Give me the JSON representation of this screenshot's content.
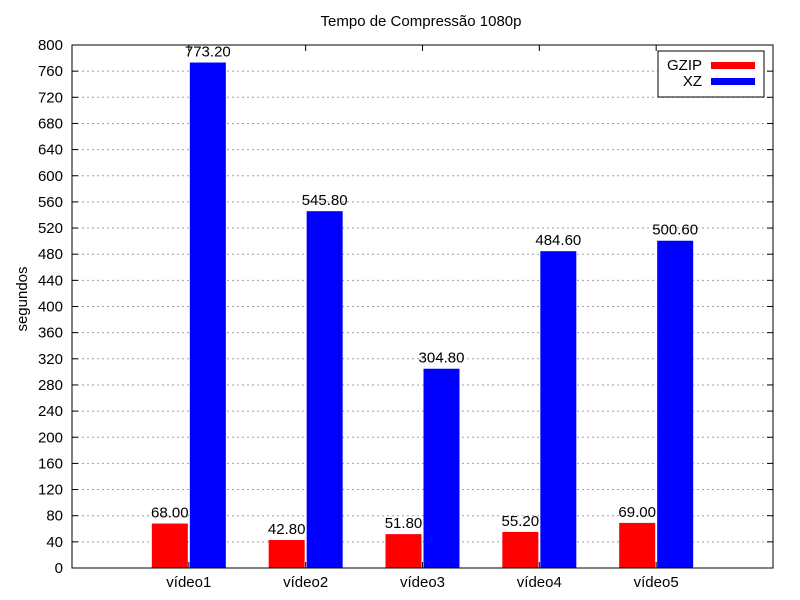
{
  "chart_data": {
    "type": "bar",
    "title": "Tempo de Compressão 1080p",
    "xlabel": "",
    "ylabel": "segundos",
    "categories": [
      "vídeo1",
      "vídeo2",
      "vídeo3",
      "vídeo4",
      "vídeo5"
    ],
    "series": [
      {
        "name": "GZIP",
        "color": "#ff0000",
        "values": [
          68.0,
          42.8,
          51.8,
          55.2,
          69.0
        ],
        "labels": [
          "68.00",
          "42.80",
          "51.80",
          "55.20",
          "69.00"
        ]
      },
      {
        "name": "XZ",
        "color": "#0000ff",
        "values": [
          773.2,
          545.8,
          304.8,
          484.6,
          500.6
        ],
        "labels": [
          "773.20",
          "545.80",
          "304.80",
          "484.60",
          "500.60"
        ]
      }
    ],
    "ylim": [
      0,
      800
    ],
    "yticks": [
      0,
      40,
      80,
      120,
      160,
      200,
      240,
      280,
      320,
      360,
      400,
      440,
      480,
      520,
      560,
      600,
      640,
      680,
      720,
      760,
      800
    ],
    "grid": "horizontal dotted",
    "legend_position": "top-right"
  }
}
